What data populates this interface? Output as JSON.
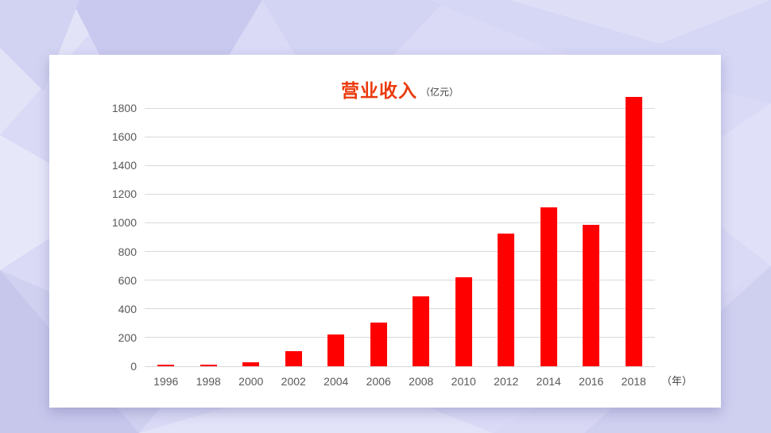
{
  "slide": {
    "background_base_color": "#dadaf6",
    "card_background": "#ffffff"
  },
  "chart_data": {
    "type": "bar",
    "title": "营业收入",
    "title_unit": "（亿元）",
    "x_axis_unit": "（年）",
    "categories": [
      "1996",
      "1998",
      "2000",
      "2002",
      "2004",
      "2006",
      "2008",
      "2010",
      "2012",
      "2014",
      "2016",
      "2018"
    ],
    "values": [
      10,
      10,
      25,
      105,
      220,
      305,
      485,
      620,
      925,
      1110,
      985,
      1880
    ],
    "ylim": [
      0,
      1900
    ],
    "y_ticks": [
      0,
      200,
      400,
      600,
      800,
      1000,
      1200,
      1400,
      1600,
      1800
    ],
    "xlabel": "",
    "ylabel": "",
    "grid": true,
    "legend_position": "none",
    "bar_color": "#FF0000",
    "title_color": "#EA3A0C",
    "axis_text_color": "#595959",
    "gridline_color": "#D9D9D9"
  }
}
